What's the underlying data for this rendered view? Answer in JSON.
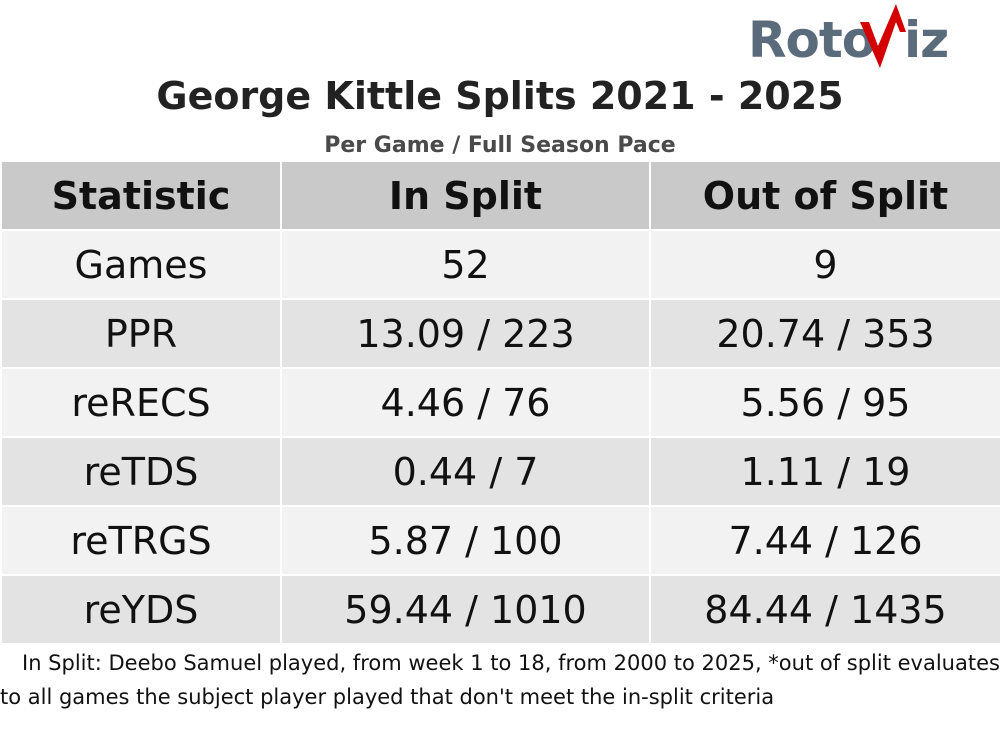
{
  "logo": {
    "text_left": "Roto",
    "text_right": "iz",
    "mark_color": "#d40000",
    "text_color": "#5a6b7b"
  },
  "chart_data": {
    "type": "table",
    "title": "George Kittle Splits 2021 - 2025",
    "subtitle": "Per Game / Full Season Pace",
    "columns": [
      "Statistic",
      "In Split",
      "Out of Split"
    ],
    "rows": [
      [
        "Games",
        "52",
        "9"
      ],
      [
        "PPR",
        "13.09 / 223",
        "20.74 / 353"
      ],
      [
        "reRECS",
        "4.46 / 76",
        "5.56 / 95"
      ],
      [
        "reTDS",
        "0.44 / 7",
        "1.11 / 19"
      ],
      [
        "reTRGS",
        "5.87 / 100",
        "7.44 / 126"
      ],
      [
        "reYDS",
        "59.44 / 1010",
        "84.44 / 1435"
      ]
    ],
    "header_color": "#c9c9c9",
    "row_colors": [
      "#f2f2f2",
      "#e3e3e3"
    ]
  },
  "footnote": "In Split: Deebo Samuel played, from week 1 to 18, from 2000 to 2025,  *out of split evaluates to all games the subject player played that don't meet the in-split criteria"
}
